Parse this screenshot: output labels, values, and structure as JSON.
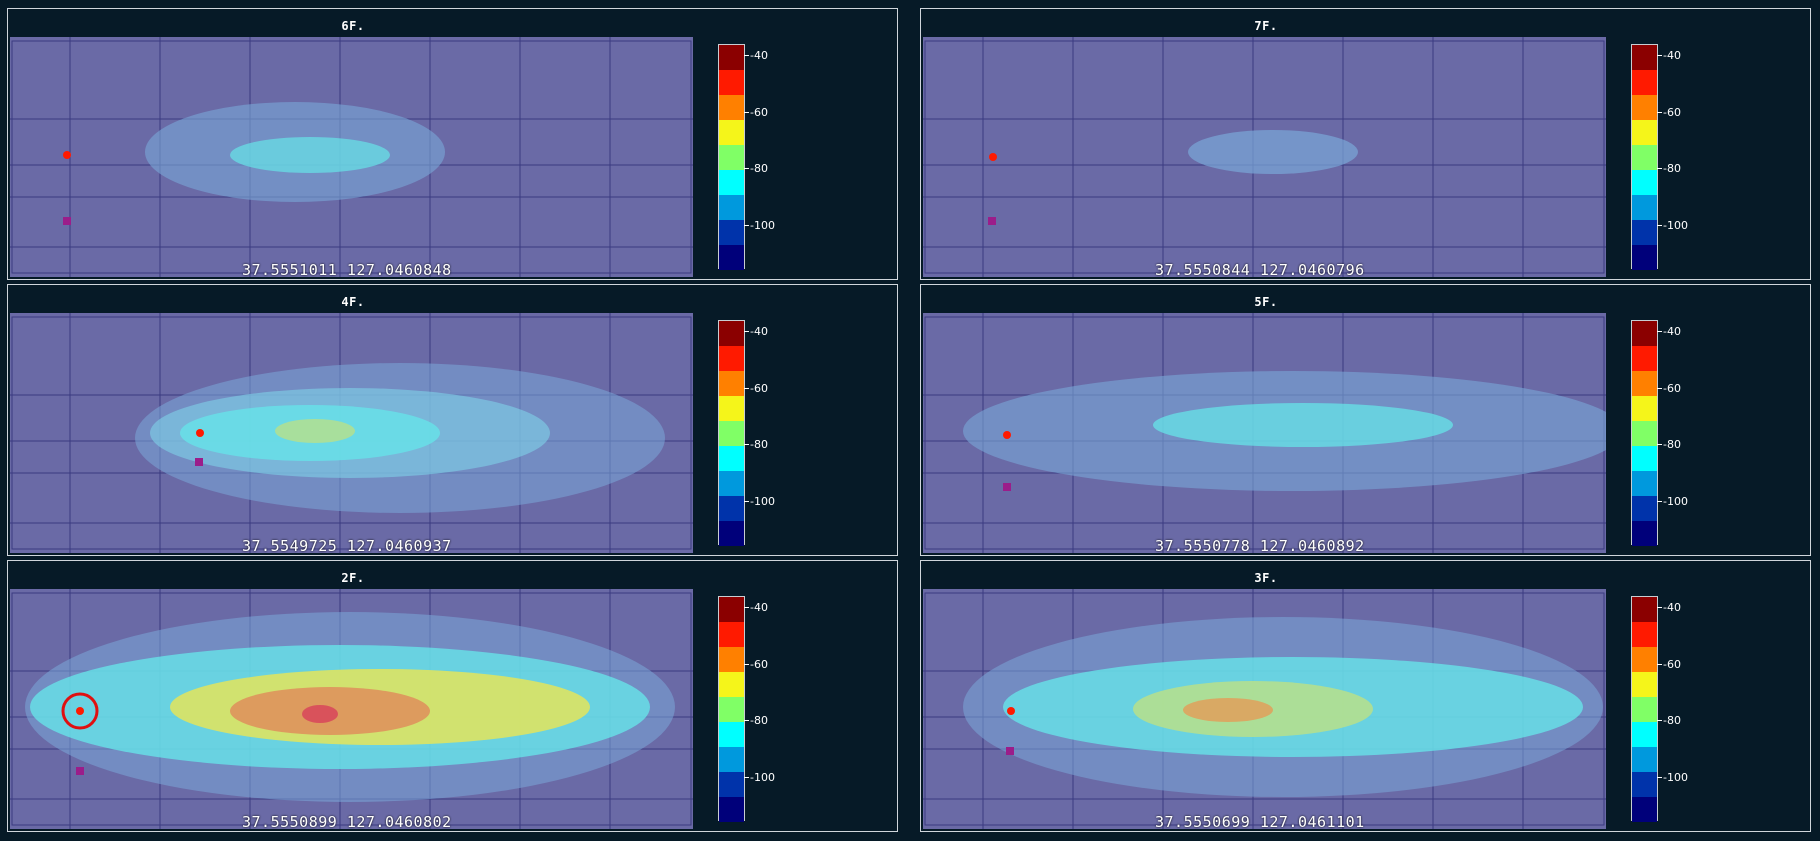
{
  "colors": {
    "background": "#061a27",
    "floorplan": "#6a6aa6",
    "scale": [
      "#8b0000",
      "#ff1a00",
      "#ff8000",
      "#f5f51a",
      "#80ff66",
      "#00ffff",
      "#0099dd",
      "#0033aa",
      "#00007a"
    ]
  },
  "scale_labels": [
    "-40",
    "-60",
    "-80",
    "-100"
  ],
  "panels": [
    {
      "title": "6F.",
      "coords": "37.5551011 127.0460848"
    },
    {
      "title": "7F.",
      "coords": "37.5550844 127.0460796"
    },
    {
      "title": "4F.",
      "coords": "37.5549725 127.0460937"
    },
    {
      "title": "5F.",
      "coords": "37.5550778 127.0460892"
    },
    {
      "title": "2F.",
      "coords": "37.5550899 127.0460802"
    },
    {
      "title": "3F.",
      "coords": "37.5550699 127.0461101"
    }
  ]
}
